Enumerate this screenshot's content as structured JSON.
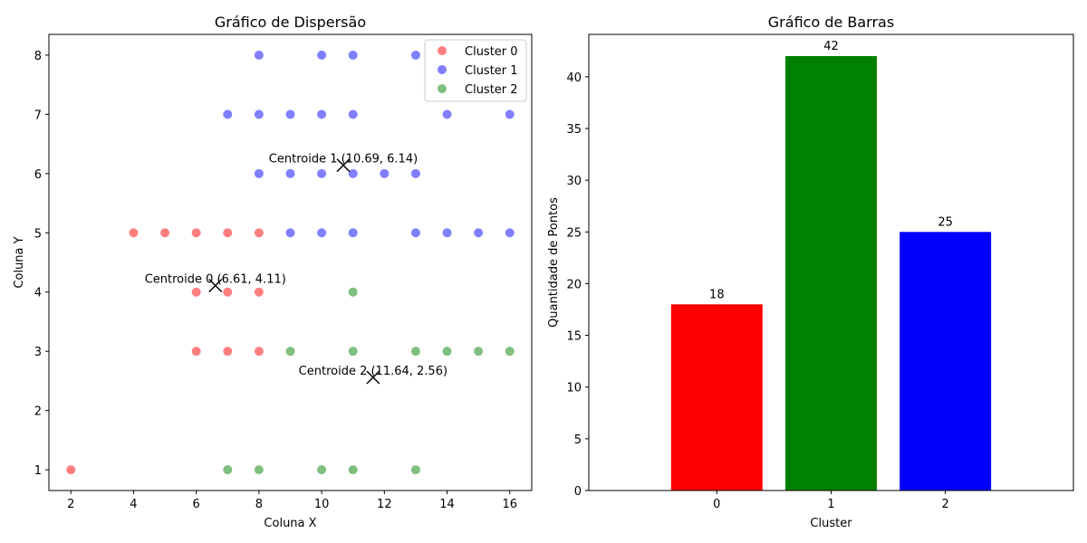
{
  "chart_data": [
    {
      "type": "scatter",
      "title": "Gráfico de Dispersão",
      "xlabel": "Coluna X",
      "ylabel": "Coluna Y",
      "xlim": [
        1.3,
        16.7
      ],
      "ylim": [
        0.65,
        8.35
      ],
      "xticks": [
        "2",
        "4",
        "6",
        "8",
        "10",
        "12",
        "14",
        "16"
      ],
      "yticks": [
        "1",
        "2",
        "3",
        "4",
        "5",
        "6",
        "7",
        "8"
      ],
      "grid": false,
      "legend_position": "top-right",
      "series": [
        {
          "name": "Cluster 0",
          "color": "#ff0000",
          "points": [
            [
              2,
              1
            ],
            [
              4,
              5
            ],
            [
              5,
              5
            ],
            [
              6,
              5
            ],
            [
              7,
              5
            ],
            [
              8,
              5
            ],
            [
              6,
              4
            ],
            [
              7,
              4
            ],
            [
              8,
              4
            ],
            [
              6,
              3
            ],
            [
              7,
              3
            ],
            [
              8,
              3
            ]
          ]
        },
        {
          "name": "Cluster 1",
          "color": "#0000ff",
          "points": [
            [
              8,
              8
            ],
            [
              10,
              8
            ],
            [
              11,
              8
            ],
            [
              13,
              8
            ],
            [
              7,
              7
            ],
            [
              8,
              7
            ],
            [
              9,
              7
            ],
            [
              10,
              7
            ],
            [
              11,
              7
            ],
            [
              14,
              7
            ],
            [
              16,
              7
            ],
            [
              8,
              6
            ],
            [
              9,
              6
            ],
            [
              10,
              6
            ],
            [
              11,
              6
            ],
            [
              12,
              6
            ],
            [
              13,
              6
            ],
            [
              9,
              5
            ],
            [
              10,
              5
            ],
            [
              11,
              5
            ],
            [
              13,
              5
            ],
            [
              14,
              5
            ],
            [
              15,
              5
            ],
            [
              16,
              5
            ]
          ]
        },
        {
          "name": "Cluster 2",
          "color": "#008000",
          "points": [
            [
              11,
              4
            ],
            [
              9,
              3
            ],
            [
              11,
              3
            ],
            [
              13,
              3
            ],
            [
              14,
              3
            ],
            [
              15,
              3
            ],
            [
              16,
              3
            ],
            [
              7,
              1
            ],
            [
              8,
              1
            ],
            [
              10,
              1
            ],
            [
              11,
              1
            ],
            [
              13,
              1
            ]
          ]
        }
      ],
      "centroids": [
        {
          "x": 6.61,
          "y": 4.11,
          "label": "Centroide 0 (6.61, 4.11)"
        },
        {
          "x": 10.69,
          "y": 6.14,
          "label": "Centroide 1 (10.69, 6.14)"
        },
        {
          "x": 11.64,
          "y": 2.56,
          "label": "Centroide 2 (11.64, 2.56)"
        }
      ]
    },
    {
      "type": "bar",
      "title": "Gráfico de Barras",
      "xlabel": "Cluster",
      "ylabel": "Quantidade de Pontos",
      "categories": [
        "0",
        "1",
        "2"
      ],
      "values": [
        18,
        42,
        25
      ],
      "value_labels": [
        "18",
        "42",
        "25"
      ],
      "colors": [
        "#ff0000",
        "#008000",
        "#0000ff"
      ],
      "ylim": [
        0,
        44.1
      ],
      "yticks": [
        "0",
        "5",
        "10",
        "15",
        "20",
        "25",
        "30",
        "35",
        "40"
      ],
      "grid": false
    }
  ]
}
